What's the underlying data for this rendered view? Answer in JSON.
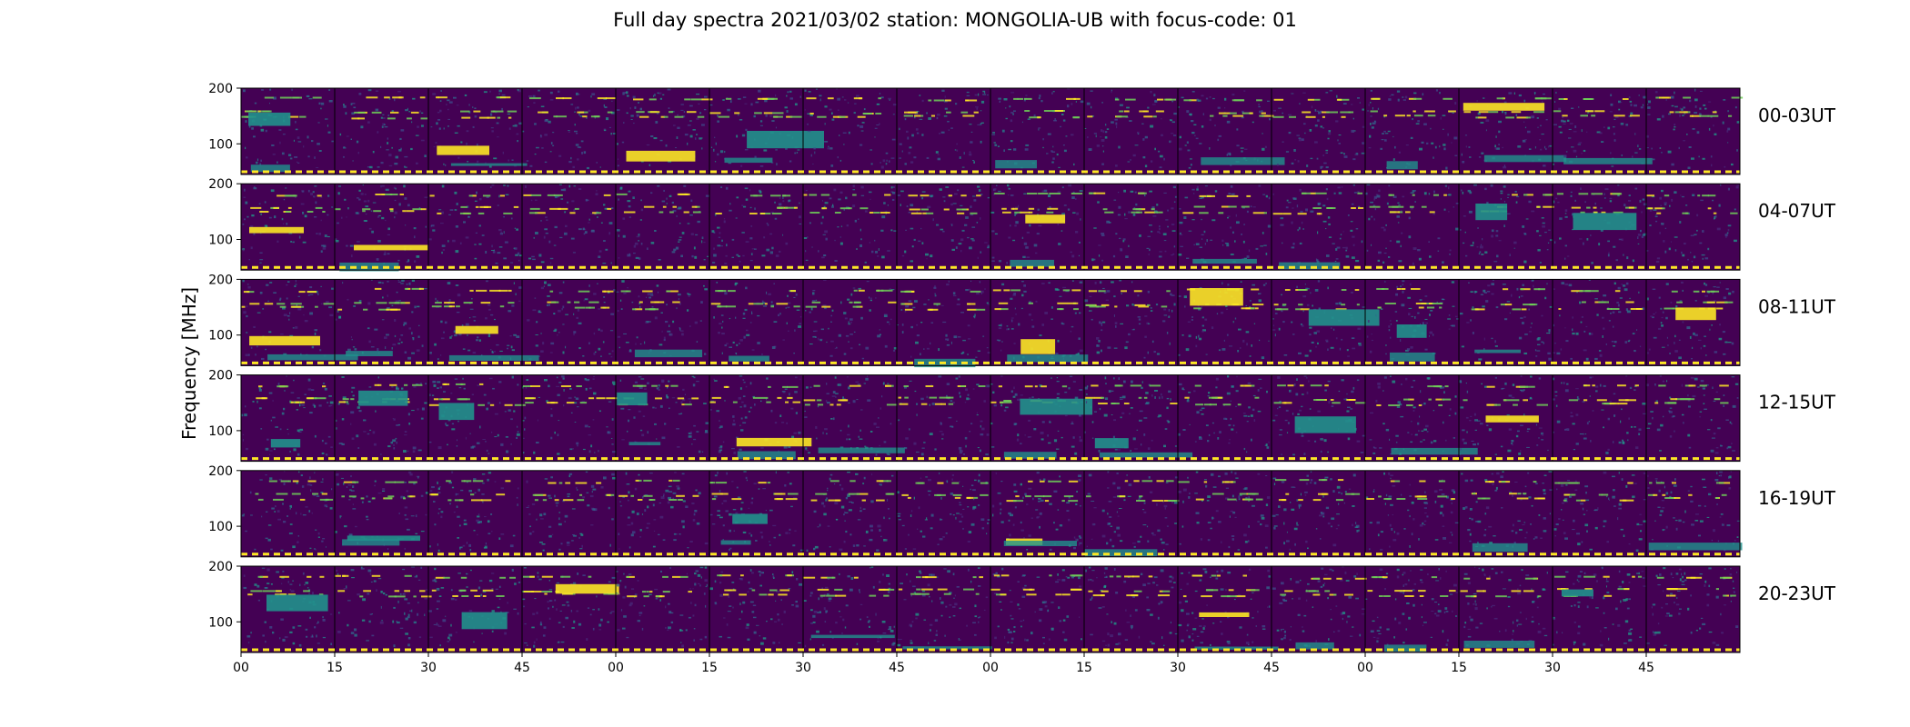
{
  "chart_data": {
    "type": "heatmap",
    "title": "Full day spectra 2021/03/02 station: MONGOLIA-UB with focus-code: 01",
    "ylabel": "Frequency [MHz]",
    "xlabel": "",
    "colormap": "viridis",
    "colors": {
      "background": "#440154",
      "mid": "#21918c",
      "high": "#fde725",
      "divider": "#000000"
    },
    "y_ticks": [
      100,
      200
    ],
    "ylim": [
      45,
      200
    ],
    "x_tick_labels": [
      "00",
      "15",
      "30",
      "45",
      "00",
      "15",
      "30",
      "45",
      "00",
      "15",
      "30",
      "45",
      "00",
      "15",
      "30",
      "45"
    ],
    "panels_per_row": 16,
    "minutes_per_panel": 15,
    "rows": [
      {
        "label": "00-03UT",
        "hours": "00-03"
      },
      {
        "label": "04-07UT",
        "hours": "04-07"
      },
      {
        "label": "08-11UT",
        "hours": "08-11"
      },
      {
        "label": "12-15UT",
        "hours": "12-15"
      },
      {
        "label": "16-19UT",
        "hours": "16-19"
      },
      {
        "label": "20-23UT",
        "hours": "20-23"
      }
    ]
  }
}
